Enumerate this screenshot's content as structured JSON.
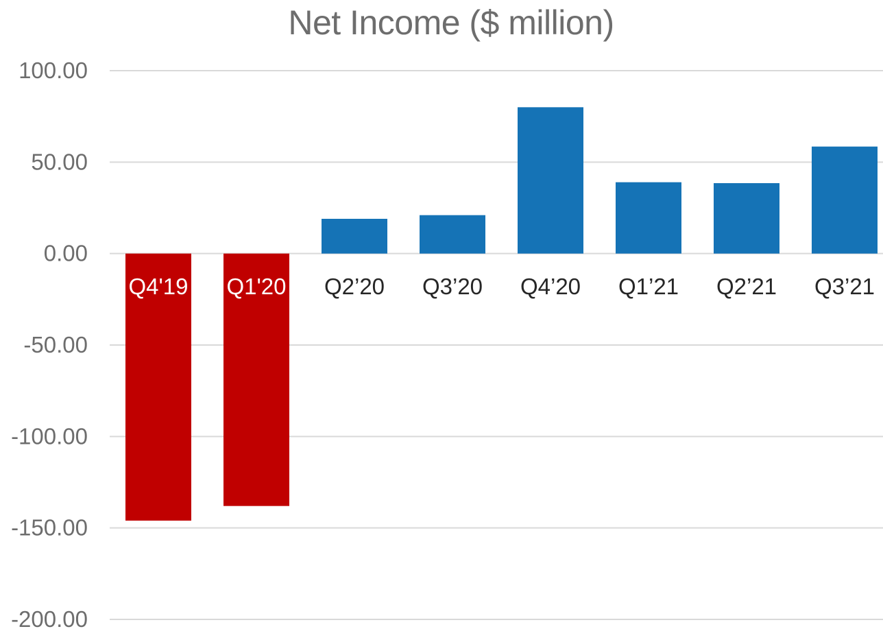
{
  "chart_data": {
    "type": "bar",
    "title": "Net Income ($ million)",
    "xlabel": "",
    "ylabel": "",
    "categories": [
      "Q4'19",
      "Q1'20",
      "Q2’20",
      "Q3’20",
      "Q4’20",
      "Q1’21",
      "Q2’21",
      "Q3’21"
    ],
    "values": [
      -146,
      -138,
      19,
      21,
      80,
      39,
      38.5,
      58.5
    ],
    "ylim": [
      -200,
      100
    ],
    "yticks": [
      100,
      50,
      0,
      -50,
      -100,
      -150,
      -200
    ],
    "ytick_labels": [
      "100.00",
      "50.00",
      "0.00",
      "-50.00",
      "-100.00",
      "-150.00",
      "-200.00"
    ],
    "grid": true,
    "legend": "none",
    "colors": {
      "positive": "#1573b6",
      "negative": "#c00000",
      "grid": "#d9d9d9",
      "axis_text": "#6d6d6d",
      "label_on_negative": "#ffffff",
      "label_on_positive": "#262626"
    }
  }
}
